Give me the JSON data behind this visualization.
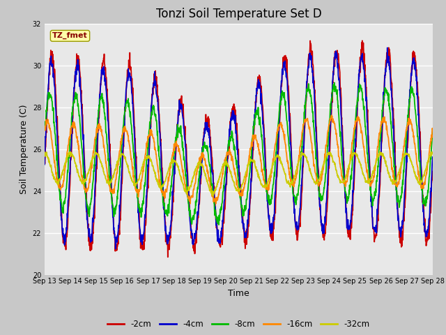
{
  "title": "Tonzi Soil Temperature Set D",
  "xlabel": "Time",
  "ylabel": "Soil Temperature (C)",
  "ylim": [
    20,
    32
  ],
  "y_ticks": [
    20,
    22,
    24,
    26,
    28,
    30,
    32
  ],
  "x_tick_labels": [
    "Sep 13",
    "Sep 14",
    "Sep 15",
    "Sep 16",
    "Sep 17",
    "Sep 18",
    "Sep 19",
    "Sep 20",
    "Sep 21",
    "Sep 22",
    "Sep 23",
    "Sep 24",
    "Sep 25",
    "Sep 26",
    "Sep 27",
    "Sep 28"
  ],
  "series_labels": [
    "-2cm",
    "-4cm",
    "-8cm",
    "-16cm",
    "-32cm"
  ],
  "series_colors": [
    "#cc0000",
    "#0000cc",
    "#00bb00",
    "#ff8800",
    "#cccc00"
  ],
  "line_width": 1.3,
  "annotation_text": "TZ_fmet",
  "annotation_bg": "#ffffaa",
  "annotation_border": "#999900",
  "annotation_color": "#880000",
  "fig_bg": "#c8c8c8",
  "plot_bg": "#e8e8e8",
  "grid_color": "#ffffff",
  "title_fontsize": 12,
  "tick_fontsize": 7,
  "label_fontsize": 9
}
